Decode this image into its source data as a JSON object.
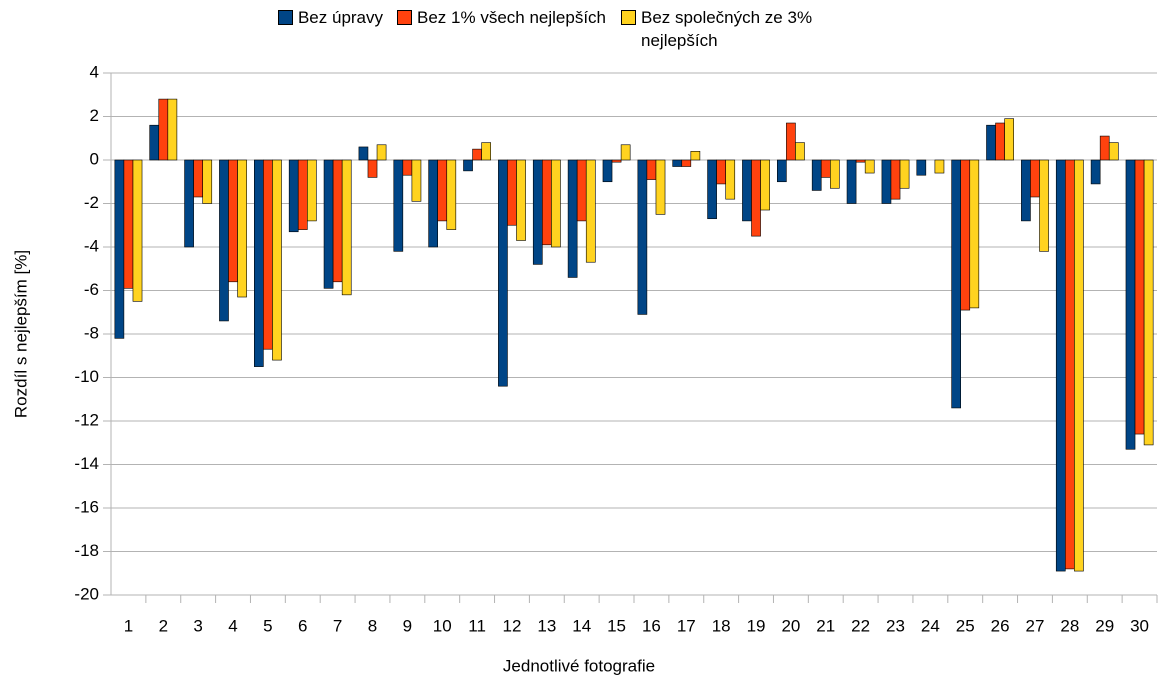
{
  "chart_data": {
    "type": "bar",
    "x_label": "Jednotlivé fotografie",
    "y_label": "Rozdíl s nejlepším [%]",
    "categories": [
      "1",
      "2",
      "3",
      "4",
      "5",
      "6",
      "7",
      "8",
      "9",
      "10",
      "11",
      "12",
      "13",
      "14",
      "15",
      "16",
      "17",
      "18",
      "19",
      "20",
      "21",
      "22",
      "23",
      "24",
      "25",
      "26",
      "27",
      "28",
      "29",
      "30"
    ],
    "series": [
      {
        "name": "Bez úpravy",
        "color": "#004586",
        "values": [
          -8.2,
          1.6,
          -4.0,
          -7.4,
          -9.5,
          -3.3,
          -5.9,
          0.6,
          -4.2,
          -4.0,
          -0.5,
          -10.4,
          -4.8,
          -5.4,
          -1.0,
          -7.1,
          -0.3,
          -2.7,
          -2.8,
          -1.0,
          -1.4,
          -2.0,
          -2.0,
          -0.7,
          -11.4,
          1.6,
          -2.8,
          -18.9,
          -1.1,
          -13.3
        ]
      },
      {
        "name": "Bez 1% všech nejlepších",
        "color": "#ff420e",
        "values": [
          -5.9,
          2.8,
          -1.7,
          -5.6,
          -8.7,
          -3.2,
          -5.6,
          -0.8,
          -0.7,
          -2.8,
          0.5,
          -3.0,
          -3.9,
          -2.8,
          -0.1,
          -0.9,
          -0.3,
          -1.1,
          -3.5,
          1.7,
          -0.8,
          -0.1,
          -1.8,
          0.0,
          -6.9,
          1.7,
          -1.7,
          -18.8,
          1.1,
          -12.6
        ]
      },
      {
        "name": "Bez společných ze 3% nejlepších",
        "color": "#ffd320",
        "values": [
          -6.5,
          2.8,
          -2.0,
          -6.3,
          -9.2,
          -2.8,
          -6.2,
          0.7,
          -1.9,
          -3.2,
          0.8,
          -3.7,
          -4.0,
          -4.7,
          0.7,
          -2.5,
          0.4,
          -1.8,
          -2.3,
          0.8,
          -1.3,
          -0.6,
          -1.3,
          -0.6,
          -6.8,
          1.9,
          -4.2,
          -18.9,
          0.8,
          -13.1
        ]
      }
    ],
    "ylim": [
      -20,
      4
    ],
    "yticks": [
      -20,
      -18,
      -16,
      -14,
      -12,
      -10,
      -8,
      -6,
      -4,
      -2,
      0,
      2,
      4
    ],
    "grid": true
  }
}
